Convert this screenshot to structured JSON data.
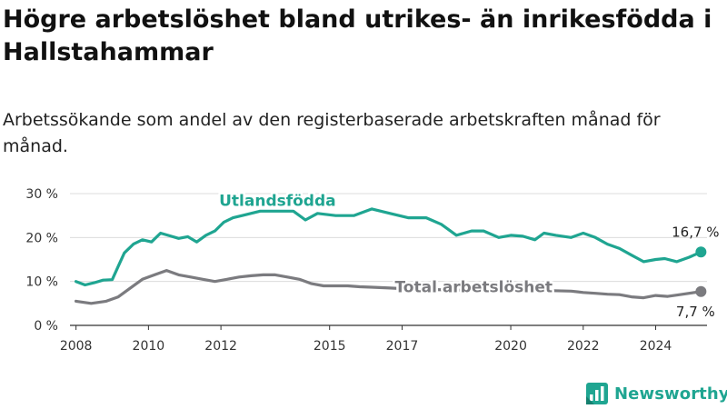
{
  "title": "Högre arbetslöshet bland utrikes- än inrikesfödda i Hallstahammar",
  "subtitle": "Arbetssökande som andel av den registerbaserade arbetskraften månad för månad.",
  "brand": {
    "name": "Newsworthy",
    "color": "#1fa591"
  },
  "chart_data": {
    "type": "line",
    "x_ticks": [
      "2008",
      "2010",
      "2012",
      "2015",
      "2017",
      "2020",
      "2022",
      "2024"
    ],
    "y_ticks": [
      "0 %",
      "10 %",
      "20 %",
      "30 %"
    ],
    "ylim": [
      0,
      30
    ],
    "xlim": [
      "2007-11",
      "2025-06"
    ],
    "grid": true,
    "series": [
      {
        "name": "Utlandsfödda",
        "color": "#1fa591",
        "end_label": "16,7 %",
        "points": [
          [
            "2008-01",
            10.0
          ],
          [
            "2008-04",
            9.2
          ],
          [
            "2008-07",
            9.7
          ],
          [
            "2008-10",
            10.3
          ],
          [
            "2009-01",
            10.4
          ],
          [
            "2009-03",
            13.5
          ],
          [
            "2009-05",
            16.5
          ],
          [
            "2009-08",
            18.5
          ],
          [
            "2009-11",
            19.5
          ],
          [
            "2010-02",
            19.0
          ],
          [
            "2010-05",
            21.0
          ],
          [
            "2010-08",
            20.4
          ],
          [
            "2010-11",
            19.8
          ],
          [
            "2011-02",
            20.2
          ],
          [
            "2011-05",
            19.0
          ],
          [
            "2011-08",
            20.5
          ],
          [
            "2011-11",
            21.5
          ],
          [
            "2012-02",
            23.5
          ],
          [
            "2012-05",
            24.5
          ],
          [
            "2012-08",
            25.0
          ],
          [
            "2013-02",
            26.0
          ],
          [
            "2014-01",
            26.0
          ],
          [
            "2014-05",
            24.0
          ],
          [
            "2014-09",
            25.5
          ],
          [
            "2015-03",
            25.0
          ],
          [
            "2015-09",
            25.0
          ],
          [
            "2016-03",
            26.5
          ],
          [
            "2016-09",
            25.5
          ],
          [
            "2017-03",
            24.5
          ],
          [
            "2017-09",
            24.5
          ],
          [
            "2018-02",
            23.0
          ],
          [
            "2018-07",
            20.5
          ],
          [
            "2018-12",
            21.5
          ],
          [
            "2019-04",
            21.5
          ],
          [
            "2019-09",
            20.0
          ],
          [
            "2020-01",
            20.5
          ],
          [
            "2020-05",
            20.3
          ],
          [
            "2020-09",
            19.5
          ],
          [
            "2020-12",
            21.0
          ],
          [
            "2021-04",
            20.5
          ],
          [
            "2021-09",
            20.0
          ],
          [
            "2022-01",
            21.0
          ],
          [
            "2022-05",
            20.0
          ],
          [
            "2022-09",
            18.5
          ],
          [
            "2023-01",
            17.5
          ],
          [
            "2023-05",
            16.0
          ],
          [
            "2023-09",
            14.5
          ],
          [
            "2024-01",
            15.0
          ],
          [
            "2024-04",
            15.2
          ],
          [
            "2024-08",
            14.5
          ],
          [
            "2024-12",
            15.5
          ],
          [
            "2025-04",
            16.7
          ]
        ]
      },
      {
        "name": "Total arbetslöshet",
        "color": "#7b7b7f",
        "end_label": "7,7 %",
        "points": [
          [
            "2008-01",
            5.5
          ],
          [
            "2008-06",
            5.0
          ],
          [
            "2008-11",
            5.5
          ],
          [
            "2009-03",
            6.5
          ],
          [
            "2009-07",
            8.5
          ],
          [
            "2009-11",
            10.5
          ],
          [
            "2010-03",
            11.5
          ],
          [
            "2010-07",
            12.5
          ],
          [
            "2010-11",
            11.5
          ],
          [
            "2011-03",
            11.0
          ],
          [
            "2011-07",
            10.5
          ],
          [
            "2011-11",
            10.0
          ],
          [
            "2012-03",
            10.5
          ],
          [
            "2012-07",
            11.0
          ],
          [
            "2012-11",
            11.3
          ],
          [
            "2013-03",
            11.5
          ],
          [
            "2013-07",
            11.5
          ],
          [
            "2013-11",
            11.0
          ],
          [
            "2014-03",
            10.5
          ],
          [
            "2014-07",
            9.5
          ],
          [
            "2014-11",
            9.0
          ],
          [
            "2015-03",
            9.0
          ],
          [
            "2015-07",
            9.0
          ],
          [
            "2015-11",
            8.8
          ],
          [
            "2016-03",
            8.7
          ],
          [
            "2016-09",
            8.5
          ],
          [
            "2017-03",
            8.3
          ],
          [
            "2017-09",
            8.2
          ],
          [
            "2018-03",
            8.1
          ],
          [
            "2018-09",
            8.0
          ],
          [
            "2019-03",
            8.0
          ],
          [
            "2019-09",
            7.9
          ],
          [
            "2020-03",
            7.9
          ],
          [
            "2020-09",
            7.9
          ],
          [
            "2021-03",
            7.9
          ],
          [
            "2021-09",
            7.8
          ],
          [
            "2022-01",
            7.5
          ],
          [
            "2022-05",
            7.3
          ],
          [
            "2022-09",
            7.1
          ],
          [
            "2023-01",
            7.0
          ],
          [
            "2023-05",
            6.5
          ],
          [
            "2023-09",
            6.3
          ],
          [
            "2024-01",
            6.8
          ],
          [
            "2024-05",
            6.6
          ],
          [
            "2024-09",
            7.0
          ],
          [
            "2025-04",
            7.7
          ]
        ]
      }
    ]
  }
}
